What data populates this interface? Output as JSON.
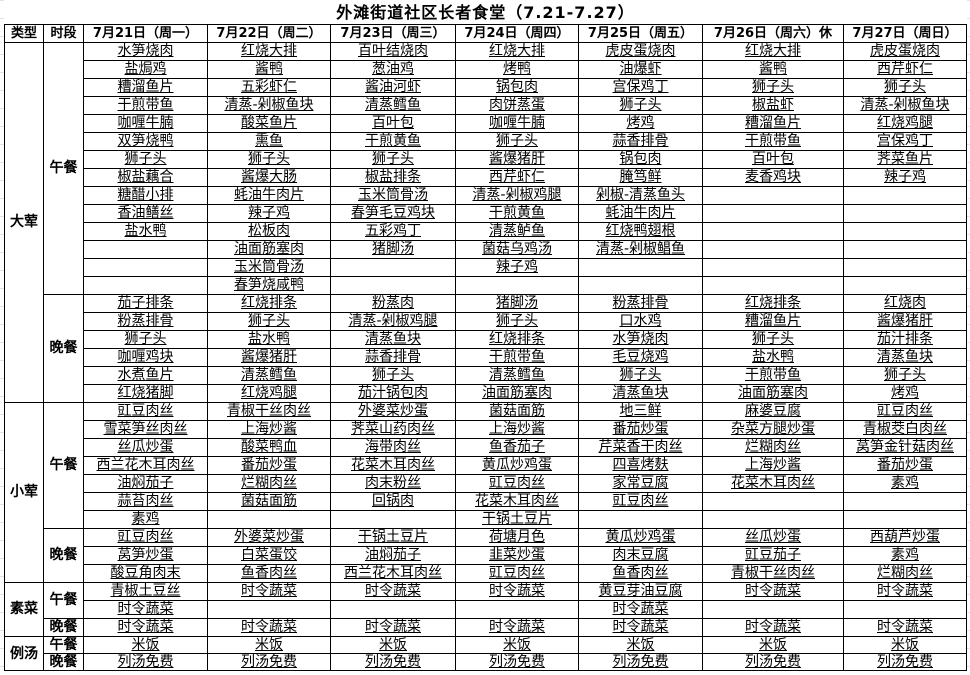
{
  "title": "外滩街道社区长者食堂（7.21-7.27）",
  "headers": {
    "type": "类型",
    "meal": "时段",
    "days": [
      "7月21日（周一）",
      "7月22日（周二）",
      "7月23日（周三）",
      "7月24日（周四）",
      "7月25日（周五）",
      "7月26日（周六）休",
      "7月27日（周日）"
    ]
  },
  "sections": [
    {
      "type": "大荤",
      "meals": [
        {
          "meal": "午餐",
          "rows": [
            [
              "水笋烧肉",
              "红烧大排",
              "百叶结烧肉",
              "红烧大排",
              "虎皮蛋烧肉",
              "红烧大排",
              "虎皮蛋烧肉"
            ],
            [
              "盐焗鸡",
              "酱鸭",
              "葱油鸡",
              "烤鸭",
              "油爆虾",
              "酱鸭",
              "西芹虾仁"
            ],
            [
              "糟溜鱼片",
              "五彩虾仁",
              "酱油河虾",
              "锅包肉",
              "宫保鸡丁",
              "狮子头",
              "狮子头"
            ],
            [
              "干煎带鱼",
              "清蒸-剁椒鱼块",
              "清蒸鳕鱼",
              "肉饼蒸蛋",
              "狮子头",
              "椒盐虾",
              "清蒸-剁椒鱼块"
            ],
            [
              "咖喱牛腩",
              "酸菜鱼片",
              "百叶包",
              "咖喱牛腩",
              "烤鸡",
              "糟溜鱼片",
              "红烧鸡腿"
            ],
            [
              "双笋烧鸭",
              "熏鱼",
              "干煎黄鱼",
              "狮子头",
              "蒜香排骨",
              "干煎带鱼",
              "宫保鸡丁"
            ],
            [
              "狮子头",
              "狮子头",
              "狮子头",
              "酱爆猪肝",
              "锅包肉",
              "百叶包",
              "荠菜鱼片"
            ],
            [
              "椒盐藕合",
              "酱爆大肠",
              "椒盐排条",
              "西芹虾仁",
              "腌笃鲜",
              "麦香鸡块",
              "辣子鸡"
            ],
            [
              "糖醋小排",
              "蚝油牛肉片",
              "玉米筒骨汤",
              "清蒸-剁椒鸡腿",
              "剁椒-清蒸鱼头",
              "",
              ""
            ],
            [
              "香油鳝丝",
              "辣子鸡",
              "春笋毛豆鸡块",
              "干煎黄鱼",
              "蚝油牛肉片",
              "",
              ""
            ],
            [
              "盐水鸭",
              "松板肉",
              "五彩鸡丁",
              "清蒸鲈鱼",
              "红烧鸭翅根",
              "",
              ""
            ],
            [
              "",
              "油面筋塞肉",
              "猪脚汤",
              "菌菇乌鸡汤",
              "清蒸-剁椒鲳鱼",
              "",
              ""
            ],
            [
              "",
              "玉米筒骨汤",
              "",
              "辣子鸡",
              "",
              "",
              ""
            ],
            [
              "",
              "春笋烧咸鸭",
              "",
              "",
              "",
              "",
              ""
            ]
          ]
        },
        {
          "meal": "晚餐",
          "rows": [
            [
              "茄子排条",
              "红烧排条",
              "粉蒸肉",
              "猪脚汤",
              "粉蒸排骨",
              "红烧排条",
              "红烧肉"
            ],
            [
              "粉蒸排骨",
              "狮子头",
              "清蒸-剁椒鸡腿",
              "狮子头",
              "口水鸡",
              "糟溜鱼片",
              "酱爆猪肝"
            ],
            [
              "狮子头",
              "盐水鸭",
              "清蒸鱼块",
              "红烧排条",
              "水笋烧肉",
              "狮子头",
              "茄汁排条"
            ],
            [
              "咖喱鸡块",
              "酱爆猪肝",
              "蒜香排骨",
              "干煎带鱼",
              "毛豆烧鸡",
              "盐水鸭",
              "清蒸鱼块"
            ],
            [
              "水煮鱼片",
              "清蒸鳕鱼",
              "狮子头",
              "清蒸鳕鱼",
              "狮子头",
              "干煎带鱼",
              "狮子头"
            ],
            [
              "红烧猪脚",
              "红烧鸡腿",
              "茄汁锅包肉",
              "油面筋塞肉",
              "清蒸鱼块",
              "油面筋塞肉",
              "烤鸡"
            ]
          ]
        }
      ]
    },
    {
      "type": "小荤",
      "meals": [
        {
          "meal": "午餐",
          "rows": [
            [
              "豇豆肉丝",
              "青椒干丝肉丝",
              "外婆菜炒蛋",
              "菌菇面筋",
              "地三鲜",
              "麻婆豆腐",
              "豇豆肉丝"
            ],
            [
              "雪菜笋丝肉丝",
              "上海炒酱",
              "荠菜山药肉丝",
              "上海炒酱",
              "番茄炒蛋",
              "杂菜方腿炒蛋",
              "青椒茭白肉丝"
            ],
            [
              "丝瓜炒蛋",
              "酸菜鸭血",
              "海带肉丝",
              "鱼香茄子",
              "芹菜香干肉丝",
              "烂糊肉丝",
              "莴笋金针菇肉丝"
            ],
            [
              "西兰花木耳肉丝",
              "番茄炒蛋",
              "花菜木耳肉丝",
              "黄瓜炒鸡蛋",
              "四喜烤麸",
              "上海炒酱",
              "番茄炒蛋"
            ],
            [
              "油焖茄子",
              "烂糊肉丝",
              "肉末粉丝",
              "豇豆肉丝",
              "家常豆腐",
              "花菜木耳肉丝",
              "素鸡"
            ],
            [
              "蒜苔肉丝",
              "菌菇面筋",
              "回锅肉",
              "花菜木耳肉丝",
              "豇豆肉丝",
              "",
              ""
            ],
            [
              "素鸡",
              "",
              "",
              "干锅土豆片",
              "",
              "",
              ""
            ]
          ]
        },
        {
          "meal": "晚餐",
          "rows": [
            [
              "豇豆肉丝",
              "外婆菜炒蛋",
              "干锅土豆片",
              "荷塘月色",
              "黄瓜炒鸡蛋",
              "丝瓜炒蛋",
              "西葫芦炒蛋"
            ],
            [
              "莴笋炒蛋",
              "白菜蛋饺",
              "油焖茄子",
              "韭菜炒蛋",
              "肉末豆腐",
              "豇豆茄子",
              "素鸡"
            ],
            [
              "酸豆角肉末",
              "鱼香肉丝",
              "西兰花木耳肉丝",
              "豇豆肉丝",
              "鱼香肉丝",
              "青椒干丝肉丝",
              "烂糊肉丝"
            ]
          ]
        }
      ]
    },
    {
      "type": "素菜",
      "meals": [
        {
          "meal": "午餐",
          "rows": [
            [
              "青椒土豆丝",
              "时令蔬菜",
              "时令蔬菜",
              "时令蔬菜",
              "黄豆芽油豆腐",
              "时令蔬菜",
              "时令蔬菜"
            ],
            [
              "时令蔬菜",
              "",
              "",
              "",
              "时令蔬菜",
              "",
              ""
            ]
          ]
        },
        {
          "meal": "晚餐",
          "rows": [
            [
              "时令蔬菜",
              "时令蔬菜",
              "时令蔬菜",
              "时令蔬菜",
              "时令蔬菜",
              "时令蔬菜",
              "时令蔬菜"
            ]
          ]
        }
      ]
    },
    {
      "type": "例汤",
      "meals": [
        {
          "meal": "午餐",
          "rows": [
            [
              "米饭",
              "米饭",
              "米饭",
              "米饭",
              "米饭",
              "米饭",
              "米饭"
            ]
          ]
        },
        {
          "meal": "晚餐",
          "rows": [
            [
              "列汤免费",
              "列汤免费",
              "列汤免费",
              "列汤免费",
              "列汤免费",
              "列汤免费",
              "列汤免费"
            ]
          ]
        }
      ]
    }
  ]
}
